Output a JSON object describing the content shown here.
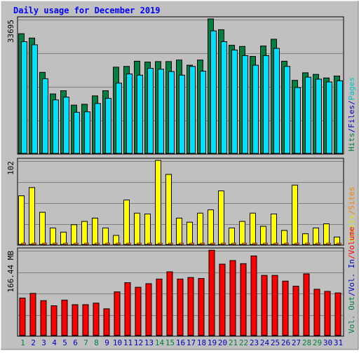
{
  "chart_data": {
    "type": "bar",
    "title": "Daily usage for December 2019",
    "categories": [
      "1",
      "2",
      "3",
      "4",
      "5",
      "6",
      "7",
      "8",
      "9",
      "10",
      "11",
      "12",
      "13",
      "14",
      "15",
      "16",
      "17",
      "18",
      "19",
      "20",
      "21",
      "22",
      "23",
      "24",
      "25",
      "26",
      "27",
      "28",
      "29",
      "30",
      "31"
    ],
    "weekend_days": [
      "1",
      "7",
      "8",
      "14",
      "15",
      "21",
      "22",
      "28",
      "29"
    ],
    "panels": [
      {
        "id": "requests",
        "scale_label": "33695",
        "ylim": [
          0,
          33695
        ],
        "series": [
          {
            "name": "Hits",
            "color": "#008040",
            "values": [
              30000,
              28900,
              20300,
              14900,
              15700,
              12100,
              12300,
              14400,
              15700,
              21600,
              21800,
              23100,
              22900,
              23000,
              23000,
              23400,
              22100,
              23400,
              33695,
              31000,
              27100,
              26800,
              24300,
              26900,
              28600,
              23100,
              18300,
              20200,
              19800,
              18900,
              19400
            ]
          },
          {
            "name": "Files",
            "color": "#00e0ff",
            "values": [
              28000,
              27200,
              18700,
              13400,
              14100,
              10300,
              10400,
              12500,
              13800,
              17600,
              19900,
              19600,
              21300,
              21100,
              20500,
              19600,
              21800,
              20600,
              30700,
              28000,
              25900,
              24500,
              22100,
              24500,
              26300,
              21800,
              16500,
              19100,
              18600,
              17900,
              18200
            ]
          },
          {
            "name": "Pages",
            "color": "#00c0c8"
          },
          {
            "name": "/",
            "color": "#0000c0"
          }
        ]
      },
      {
        "id": "visits",
        "scale_label": "102",
        "ylim": [
          0,
          102
        ],
        "series": [
          {
            "name": "Visits",
            "color": "#ffff00",
            "values": [
              59,
              69,
              39,
              20,
              15,
              24,
              28,
              32,
              20,
              11,
              54,
              38,
              37,
              102,
              85,
              32,
              27,
              38,
              42,
              65,
              20,
              28,
              38,
              22,
              37,
              17,
              72,
              13,
              20,
              25,
              9
            ]
          },
          {
            "name": "Sites",
            "color": "#ff8000"
          }
        ]
      },
      {
        "id": "volume",
        "scale_label": "166.44 MB",
        "ylim": [
          0,
          166.44
        ],
        "series": [
          {
            "name": "Volume",
            "color": "#ff0000",
            "values": [
              73,
              82,
              68,
              58,
              69,
              60,
              60,
              63,
              52,
              85,
              103,
              94,
              101,
              110,
              124,
              110,
              113,
              111,
              166,
              139,
              146,
              140,
              155,
              117,
              117,
              106,
              96,
              120,
              90,
              86,
              83
            ]
          },
          {
            "name": "Vol. In",
            "color": "#0000c0"
          },
          {
            "name": "Vol. Out",
            "color": "#008040"
          }
        ]
      }
    ],
    "right_labels": [
      {
        "panel": "requests",
        "parts": [
          {
            "text": "Hits",
            "color": "#008040"
          },
          {
            "text": "/",
            "color": "#0000c0"
          },
          {
            "text": "Files",
            "color": "#0000c0"
          },
          {
            "text": "/",
            "color": "#0000c0"
          },
          {
            "text": "Pages",
            "color": "#00c0c8"
          }
        ]
      },
      {
        "panel": "visits",
        "parts": [
          {
            "text": "Visits",
            "color": "#e0e000"
          },
          {
            "text": "/",
            "color": "#ff8000"
          },
          {
            "text": "Sites",
            "color": "#ff8000"
          }
        ]
      },
      {
        "panel": "volume",
        "parts": [
          {
            "text": "Vol. Out",
            "color": "#008040"
          },
          {
            "text": "/",
            "color": "#0000c0"
          },
          {
            "text": "Vol. In",
            "color": "#0000c0"
          },
          {
            "text": "/",
            "color": "#ff0000"
          },
          {
            "text": "Volume",
            "color": "#ff0000"
          }
        ]
      }
    ],
    "colors": {
      "title": "#0000ff",
      "frame": "#c0c0c0",
      "plot": "#c0c0c0",
      "grid": "#808080",
      "weekday_label": "#0000c0",
      "weekend_label": "#008040"
    }
  }
}
